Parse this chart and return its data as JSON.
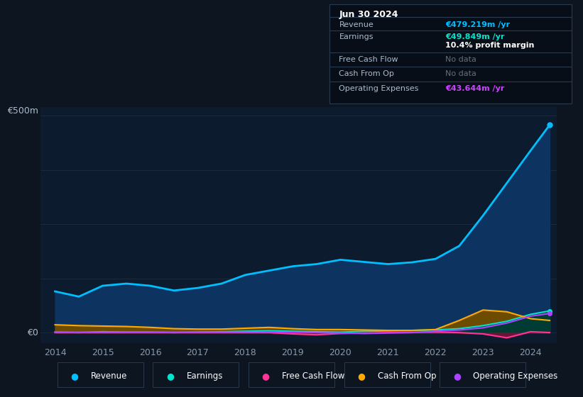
{
  "background_color": "#0d1520",
  "plot_bg_color": "#0d1b2e",
  "grid_color": "#1a2a3a",
  "title_box": {
    "date": "Jun 30 2024",
    "rows": [
      {
        "label": "Revenue",
        "value": "€479.219m /yr",
        "value_color": "#00bfff",
        "nodata": false
      },
      {
        "label": "Earnings",
        "value": "€49.849m /yr",
        "value_color": "#00e5cc",
        "nodata": false
      },
      {
        "label": "",
        "value": "10.4% profit margin",
        "value_color": "#ffffff",
        "nodata": false
      },
      {
        "label": "Free Cash Flow",
        "value": "No data",
        "value_color": "#666e7a",
        "nodata": true
      },
      {
        "label": "Cash From Op",
        "value": "No data",
        "value_color": "#666e7a",
        "nodata": true
      },
      {
        "label": "Operating Expenses",
        "value": "€43.644m /yr",
        "value_color": "#cc44ff",
        "nodata": false
      }
    ]
  },
  "ylabel_top": "€500m",
  "ylabel_zero": "€0",
  "years": [
    2014.0,
    2014.5,
    2015.0,
    2015.5,
    2016.0,
    2016.5,
    2017.0,
    2017.5,
    2018.0,
    2018.5,
    2019.0,
    2019.5,
    2020.0,
    2020.5,
    2021.0,
    2021.5,
    2022.0,
    2022.5,
    2023.0,
    2023.5,
    2024.0,
    2024.4
  ],
  "revenue": [
    95,
    83,
    108,
    113,
    108,
    97,
    103,
    113,
    133,
    143,
    153,
    158,
    168,
    163,
    158,
    162,
    170,
    200,
    270,
    345,
    420,
    479
  ],
  "earnings": [
    1,
    0,
    2,
    1,
    1,
    0,
    1,
    2,
    3,
    4,
    3,
    2,
    1,
    3,
    4,
    5,
    6,
    9,
    16,
    26,
    42,
    50
  ],
  "free_cash_flow": [
    0,
    0,
    0,
    0,
    0,
    0,
    0,
    0,
    0,
    0,
    -3,
    -5,
    -2,
    -1,
    0,
    1,
    1,
    0,
    -3,
    -12,
    2,
    0
  ],
  "cash_from_op": [
    18,
    16,
    15,
    14,
    12,
    9,
    8,
    8,
    10,
    12,
    9,
    7,
    7,
    6,
    5,
    5,
    7,
    28,
    52,
    48,
    32,
    28
  ],
  "operating_expenses": [
    1,
    1,
    1,
    1,
    1,
    1,
    1,
    1,
    1,
    1,
    1,
    0,
    -1,
    -2,
    -1,
    0,
    3,
    6,
    11,
    22,
    38,
    44
  ],
  "x_ticks": [
    2014,
    2015,
    2016,
    2017,
    2018,
    2019,
    2020,
    2021,
    2022,
    2023,
    2024
  ],
  "ylim": [
    -25,
    520
  ],
  "ylines": [
    0,
    125,
    250,
    375,
    500
  ],
  "revenue_fill_color": "#0d3360",
  "earnings_fill_color": "#003c34",
  "fcf_fill_color": "#6b1535",
  "cfo_fill_color": "#6b4c00",
  "opex_fill_color": "#3d1a6e",
  "revenue_line_color": "#00bfff",
  "earnings_line_color": "#00e5cc",
  "fcf_line_color": "#ff3399",
  "cfo_line_color": "#ffaa00",
  "opex_line_color": "#aa44ff",
  "legend": [
    {
      "label": "Revenue",
      "color": "#00bfff"
    },
    {
      "label": "Earnings",
      "color": "#00e5cc"
    },
    {
      "label": "Free Cash Flow",
      "color": "#ff3399"
    },
    {
      "label": "Cash From Op",
      "color": "#ffaa00"
    },
    {
      "label": "Operating Expenses",
      "color": "#aa44ff"
    }
  ]
}
